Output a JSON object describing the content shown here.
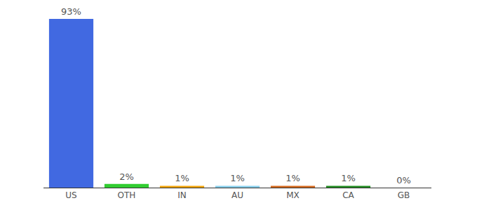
{
  "chart_data": {
    "type": "bar",
    "categories": [
      "US",
      "OTH",
      "IN",
      "AU",
      "MX",
      "CA",
      "GB"
    ],
    "values": [
      93,
      2,
      1,
      1,
      1,
      1,
      0
    ],
    "value_labels": [
      "93%",
      "2%",
      "1%",
      "1%",
      "1%",
      "1%",
      "0%"
    ],
    "colors": [
      "#4169E1",
      "#32CD32",
      "#F0A30A",
      "#87CEEB",
      "#D2691E",
      "#228B22",
      "#808080"
    ],
    "ylim": [
      0,
      93
    ],
    "grid": false,
    "data_labels": true,
    "tick_labels": "x"
  }
}
